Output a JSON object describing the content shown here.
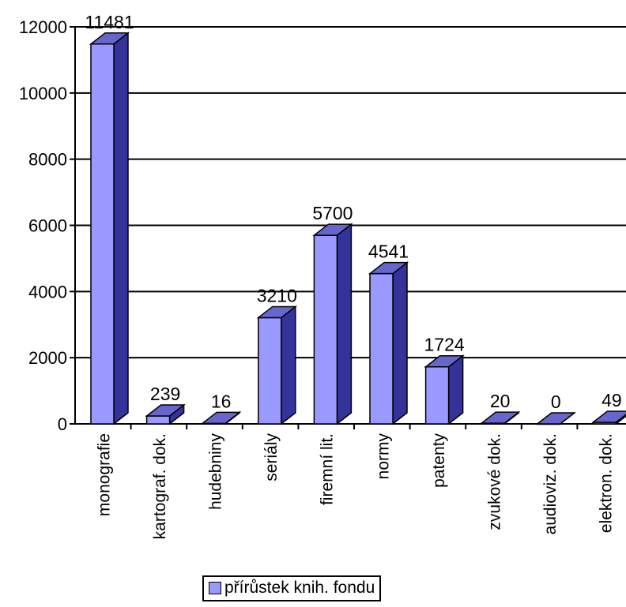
{
  "chart_data": {
    "type": "bar",
    "categories": [
      "monografie",
      "kartograf. dok.",
      "hudebniny",
      "seriály",
      "firemní lit.",
      "normy",
      "patenty",
      "zvukové dok.",
      "audioviz. dok.",
      "elektron. dok."
    ],
    "series": [
      {
        "name": "přírůstek knih. fondu",
        "values": [
          11481,
          239,
          16,
          3210,
          5700,
          4541,
          1724,
          20,
          0,
          49
        ]
      }
    ],
    "data_labels": [
      "11481",
      "239",
      "16",
      "3210",
      "5700",
      "4541",
      "1724",
      "20",
      "0",
      "49"
    ],
    "y_ticks": [
      "0",
      "2000",
      "4000",
      "6000",
      "8000",
      "10000",
      "12000"
    ],
    "ylim": [
      0,
      12000
    ],
    "grid": true,
    "legend_position": "bottom",
    "colors": {
      "bar_front": "#9999ff",
      "bar_side": "#333399",
      "bar_top": "#6666cc"
    }
  }
}
